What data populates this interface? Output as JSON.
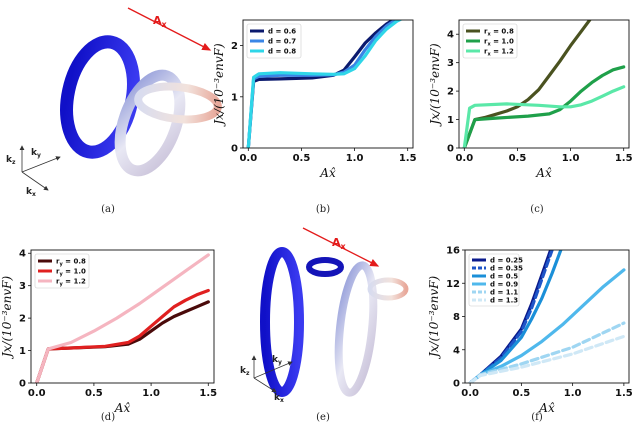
{
  "captions": [
    "(a)",
    "(b)",
    "(c)",
    "(d)",
    "(e)",
    "(f)"
  ],
  "illustration_a": {
    "field_label": "A",
    "field_sub": "x",
    "axes": [
      {
        "b": "k",
        "s": "z"
      },
      {
        "b": "k",
        "s": "y"
      },
      {
        "b": "k",
        "s": "x"
      }
    ]
  },
  "illustration_e": {
    "field_label": "A",
    "field_sub": "x",
    "axes": [
      {
        "b": "k",
        "s": "z"
      },
      {
        "b": "k",
        "s": "y"
      },
      {
        "b": "k",
        "s": "x"
      }
    ]
  },
  "chart_data": [
    {
      "id": "b",
      "type": "line",
      "xlabel": "Ax̂",
      "ylabel": "Jx/(10⁻³envF)",
      "xlim": [
        -0.05,
        1.55
      ],
      "ylim": [
        0,
        2.5
      ],
      "xticks": [
        0.0,
        0.5,
        1.0,
        1.5
      ],
      "xtick_labels": [
        "0.0",
        "0.5",
        "1.0",
        "1.5"
      ],
      "yticks": [
        0,
        1,
        2
      ],
      "ytick_labels": [
        "0",
        "1",
        "2"
      ],
      "legend_position": "top-left",
      "series": [
        {
          "name": "d = 0.6",
          "color": "#0b1a6e",
          "dash": false,
          "x": [
            0,
            0.05,
            0.1,
            0.3,
            0.6,
            0.8,
            0.9,
            1.0,
            1.1,
            1.2,
            1.3,
            1.4,
            1.5
          ],
          "y": [
            0,
            1.3,
            1.34,
            1.35,
            1.37,
            1.42,
            1.52,
            1.78,
            2.05,
            2.25,
            2.42,
            2.55,
            2.62
          ]
        },
        {
          "name": "d = 0.7",
          "color": "#3a86e6",
          "dash": false,
          "x": [
            0,
            0.05,
            0.1,
            0.3,
            0.6,
            0.8,
            0.9,
            1.0,
            1.1,
            1.2,
            1.3,
            1.4,
            1.5
          ],
          "y": [
            0,
            1.35,
            1.4,
            1.42,
            1.42,
            1.43,
            1.48,
            1.62,
            1.92,
            2.18,
            2.38,
            2.52,
            2.6
          ]
        },
        {
          "name": "d = 0.8",
          "color": "#2fd6e8",
          "dash": false,
          "x": [
            0,
            0.05,
            0.1,
            0.3,
            0.6,
            0.8,
            0.9,
            1.0,
            1.1,
            1.2,
            1.3,
            1.4,
            1.5
          ],
          "y": [
            0,
            1.38,
            1.45,
            1.47,
            1.45,
            1.44,
            1.45,
            1.55,
            1.8,
            2.1,
            2.32,
            2.48,
            2.58
          ]
        }
      ]
    },
    {
      "id": "c",
      "type": "line",
      "xlabel": "Ax̂",
      "ylabel": "Jx/(10⁻³envF)",
      "xlim": [
        -0.05,
        1.55
      ],
      "ylim": [
        0,
        4.5
      ],
      "xticks": [
        0.0,
        0.5,
        1.0,
        1.5
      ],
      "xtick_labels": [
        "0.0",
        "0.5",
        "1.0",
        "1.5"
      ],
      "yticks": [
        0,
        1,
        2,
        3,
        4
      ],
      "ytick_labels": [
        "0",
        "1",
        "2",
        "3",
        "4"
      ],
      "legend_position": "top-left",
      "series": [
        {
          "name": "rx = 0.8",
          "label_b": "r",
          "label_s": "x",
          "label_v": " = 0.8",
          "color": "#4a5220",
          "dash": false,
          "x": [
            0,
            0.1,
            0.2,
            0.4,
            0.5,
            0.6,
            0.7,
            0.8,
            0.9,
            1.0,
            1.1,
            1.2
          ],
          "y": [
            0,
            1.0,
            1.08,
            1.3,
            1.45,
            1.7,
            2.05,
            2.55,
            3.05,
            3.6,
            4.1,
            4.6
          ]
        },
        {
          "name": "rx = 1.0",
          "label_b": "r",
          "label_s": "x",
          "label_v": " = 1.0",
          "color": "#1fa04a",
          "dash": false,
          "x": [
            0,
            0.1,
            0.3,
            0.6,
            0.8,
            0.9,
            1.0,
            1.1,
            1.2,
            1.3,
            1.4,
            1.5
          ],
          "y": [
            0,
            1.0,
            1.05,
            1.12,
            1.2,
            1.35,
            1.65,
            2.0,
            2.3,
            2.55,
            2.75,
            2.85
          ]
        },
        {
          "name": "rx = 1.2",
          "label_b": "r",
          "label_s": "x",
          "label_v": " = 1.2",
          "color": "#5ae8a8",
          "dash": false,
          "x": [
            0,
            0.05,
            0.1,
            0.4,
            0.7,
            0.9,
            1.0,
            1.1,
            1.2,
            1.3,
            1.4,
            1.5
          ],
          "y": [
            0,
            1.4,
            1.5,
            1.55,
            1.5,
            1.45,
            1.45,
            1.52,
            1.65,
            1.82,
            2.0,
            2.15
          ]
        }
      ]
    },
    {
      "id": "d",
      "type": "line",
      "xlabel": "Ax̂",
      "ylabel": "Jx/(10⁻³envF)",
      "xlim": [
        -0.05,
        1.55
      ],
      "ylim": [
        0,
        4.1
      ],
      "xticks": [
        0.0,
        0.5,
        1.0,
        1.5
      ],
      "xtick_labels": [
        "0.0",
        "0.5",
        "1.0",
        "1.5"
      ],
      "yticks": [
        0,
        1,
        2,
        3,
        4
      ],
      "ytick_labels": [
        "0",
        "1",
        "2",
        "3",
        "4"
      ],
      "legend_position": "top-left",
      "series": [
        {
          "name": "ry = 0.8",
          "label_b": "r",
          "label_s": "y",
          "label_v": " = 0.8",
          "color": "#4a0a0a",
          "dash": false,
          "x": [
            0,
            0.1,
            0.3,
            0.6,
            0.8,
            0.9,
            1.0,
            1.1,
            1.2,
            1.3,
            1.4,
            1.5
          ],
          "y": [
            0,
            1.05,
            1.08,
            1.12,
            1.2,
            1.35,
            1.6,
            1.85,
            2.05,
            2.2,
            2.35,
            2.5
          ]
        },
        {
          "name": "ry = 1.0",
          "label_b": "r",
          "label_s": "y",
          "label_v": " = 1.0",
          "color": "#e02020",
          "dash": false,
          "x": [
            0,
            0.1,
            0.3,
            0.6,
            0.8,
            0.9,
            1.0,
            1.1,
            1.2,
            1.3,
            1.4,
            1.5
          ],
          "y": [
            0,
            1.05,
            1.08,
            1.13,
            1.25,
            1.45,
            1.75,
            2.05,
            2.35,
            2.55,
            2.72,
            2.85
          ]
        },
        {
          "name": "ry = 1.2",
          "label_b": "r",
          "label_s": "y",
          "label_v": " = 1.2",
          "color": "#f5b5c0",
          "dash": false,
          "x": [
            0,
            0.1,
            0.3,
            0.5,
            0.7,
            0.9,
            1.0,
            1.1,
            1.2,
            1.3,
            1.4,
            1.5
          ],
          "y": [
            0,
            1.05,
            1.25,
            1.6,
            2.0,
            2.45,
            2.7,
            2.95,
            3.2,
            3.45,
            3.7,
            3.95
          ]
        }
      ]
    },
    {
      "id": "f",
      "type": "line",
      "xlabel": "Ax̂",
      "ylabel": "Jx/(10⁻³envF)",
      "xlim": [
        -0.05,
        1.55
      ],
      "ylim": [
        0,
        16
      ],
      "xticks": [
        0.0,
        0.5,
        1.0,
        1.5
      ],
      "xtick_labels": [
        "0.0",
        "0.5",
        "1.0",
        "1.5"
      ],
      "yticks": [
        0,
        4,
        8,
        12,
        16
      ],
      "ytick_labels": [
        "0",
        "4",
        "8",
        "12",
        "16"
      ],
      "legend_position": "top-left",
      "series": [
        {
          "name": "d = 0.25",
          "color": "#0a1a8c",
          "dash": false,
          "x": [
            0,
            0.1,
            0.3,
            0.5,
            0.6,
            0.7,
            0.8
          ],
          "y": [
            0,
            1.0,
            3.2,
            6.5,
            9.5,
            13.0,
            16.5
          ]
        },
        {
          "name": "d = 0.35",
          "color": "#1e55c8",
          "dash": true,
          "x": [
            0,
            0.1,
            0.3,
            0.5,
            0.6,
            0.7,
            0.8
          ],
          "y": [
            0,
            1.0,
            3.0,
            6.2,
            9.0,
            12.5,
            16.0
          ]
        },
        {
          "name": "d = 0.5",
          "color": "#1a8fd8",
          "dash": false,
          "x": [
            0,
            0.1,
            0.3,
            0.5,
            0.6,
            0.7,
            0.8,
            0.9
          ],
          "y": [
            0,
            1.0,
            2.7,
            5.5,
            7.7,
            10.2,
            13.2,
            16.5
          ]
        },
        {
          "name": "d = 0.9",
          "color": "#4fb8ec",
          "dash": false,
          "x": [
            0,
            0.1,
            0.3,
            0.5,
            0.7,
            0.9,
            1.1,
            1.3,
            1.5
          ],
          "y": [
            0,
            1.0,
            2.0,
            3.3,
            5.0,
            7.0,
            9.3,
            11.6,
            13.6
          ]
        },
        {
          "name": "d = 1.1",
          "color": "#9fd6f2",
          "dash": true,
          "x": [
            0,
            0.1,
            0.5,
            1.0,
            1.5
          ],
          "y": [
            0,
            1.0,
            2.3,
            4.3,
            7.2
          ]
        },
        {
          "name": "d = 1.3",
          "color": "#cfe8f6",
          "dash": true,
          "x": [
            0,
            0.1,
            0.5,
            1.0,
            1.5
          ],
          "y": [
            0,
            0.9,
            1.9,
            3.5,
            5.6
          ]
        }
      ]
    }
  ]
}
